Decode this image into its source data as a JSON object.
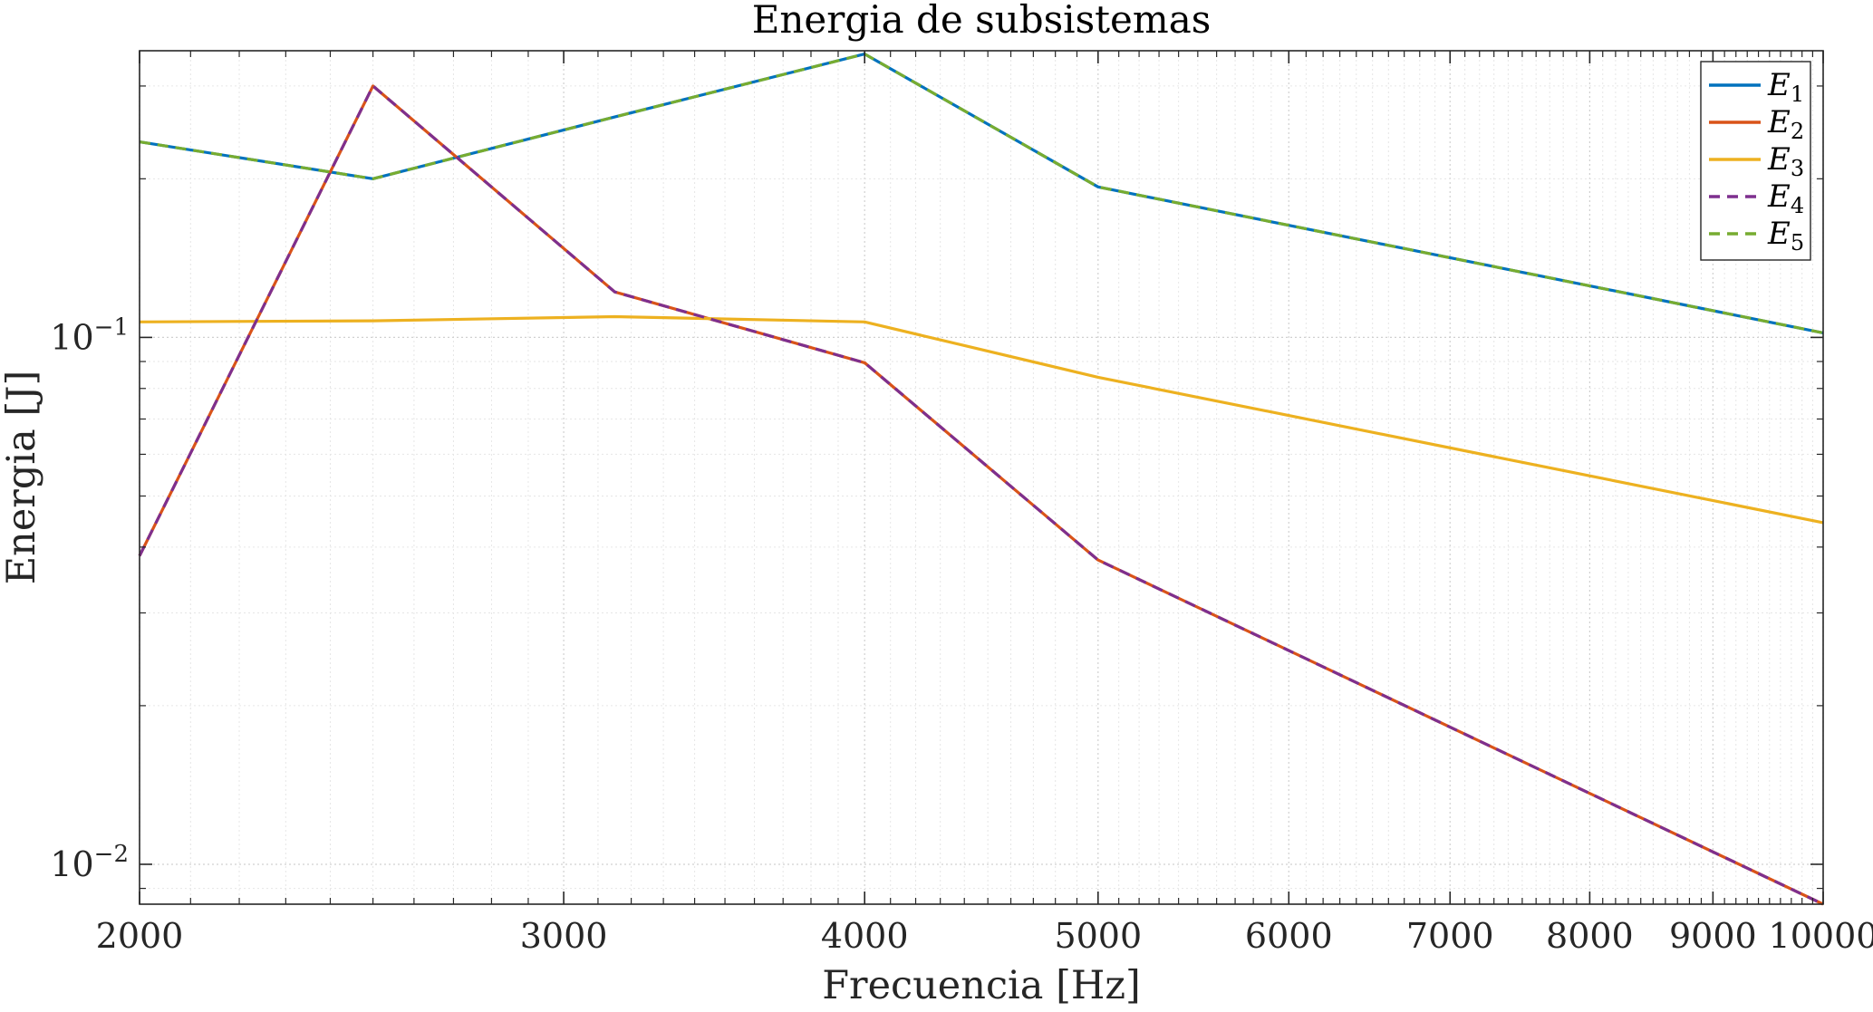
{
  "chart_data": {
    "type": "line",
    "title": "Energia de subsistemas",
    "xlabel": "Frecuencia [Hz]",
    "ylabel": "Energia [J]",
    "xscale": "log",
    "yscale": "log",
    "xlim": [
      2000,
      10000
    ],
    "ylim": [
      0.0084,
      0.35
    ],
    "grid": true,
    "minor_grid": true,
    "legend_position": "top-right",
    "x": [
      2000,
      2500,
      3150,
      4000,
      5000,
      10000
    ],
    "x_tick_labels": [
      "2000",
      "3000",
      "4000",
      "5000",
      "6000",
      "7000",
      "8000",
      "9000",
      "10000"
    ],
    "x_tick_values": [
      2000,
      3000,
      4000,
      5000,
      6000,
      7000,
      8000,
      9000,
      10000
    ],
    "y_tick_labels": [
      {
        "base": "10",
        "exp": "−1",
        "value": 0.1
      },
      {
        "base": "10",
        "exp": "−2",
        "value": 0.01
      }
    ],
    "series": [
      {
        "name": "E",
        "sub": "1",
        "color": "#0072BD",
        "dash": "solid",
        "values": [
          0.235,
          0.2,
          0.262,
          0.345,
          0.193,
          0.102
        ]
      },
      {
        "name": "E",
        "sub": "2",
        "color": "#D95319",
        "dash": "solid",
        "values": [
          0.0385,
          0.3,
          0.122,
          0.0895,
          0.0378,
          0.0084
        ]
      },
      {
        "name": "E",
        "sub": "3",
        "color": "#EDB120",
        "dash": "solid",
        "values": [
          0.107,
          0.1075,
          0.1095,
          0.107,
          0.084,
          0.0445
        ]
      },
      {
        "name": "E",
        "sub": "4",
        "color": "#7E2F8E",
        "dash": "dashed",
        "values": [
          0.0385,
          0.3,
          0.122,
          0.0895,
          0.0378,
          0.0084
        ]
      },
      {
        "name": "E",
        "sub": "5",
        "color": "#77AC30",
        "dash": "dashed",
        "values": [
          0.235,
          0.2,
          0.262,
          0.345,
          0.193,
          0.102
        ]
      }
    ]
  }
}
